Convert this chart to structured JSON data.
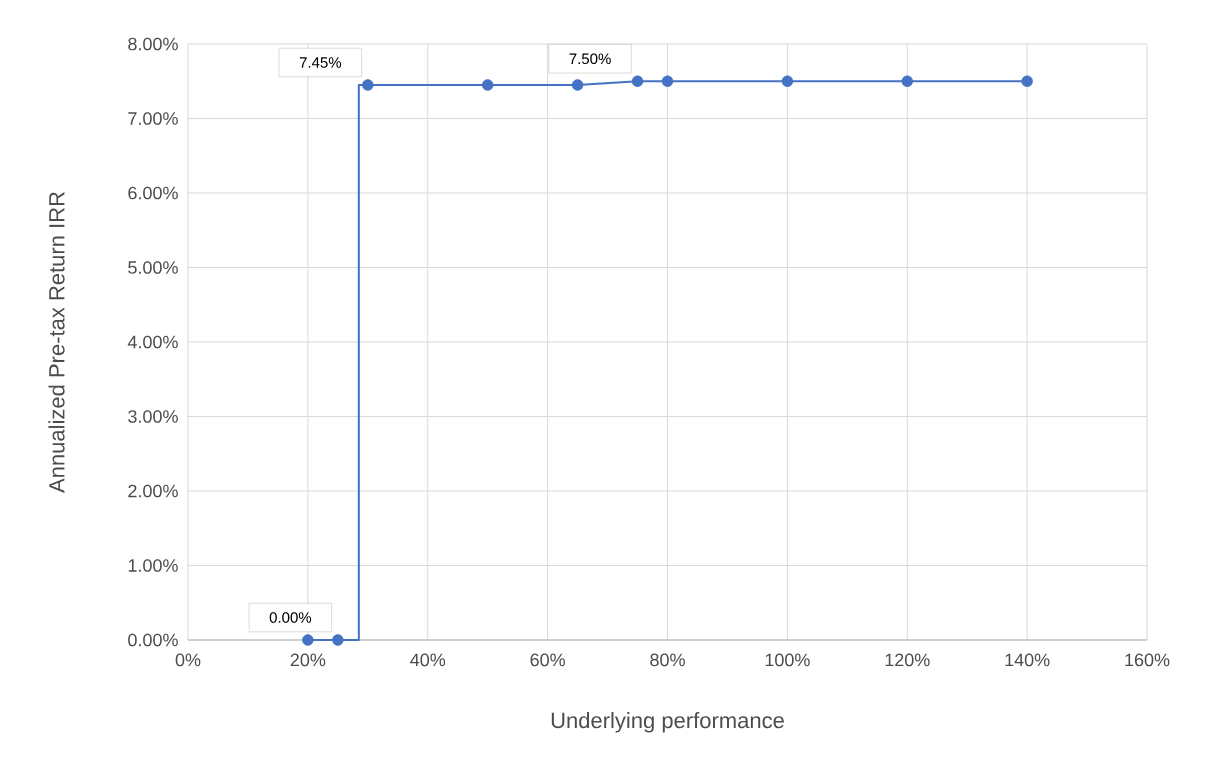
{
  "chart_data": {
    "type": "line",
    "xlabel": "Underlying performance",
    "ylabel": "Annualized Pre-tax Return IRR",
    "series": [
      {
        "color": "#4472c4",
        "marker": "none",
        "x": [
          20,
          25,
          28.5,
          28.5,
          30,
          50,
          65,
          75,
          80,
          100,
          120,
          140
        ],
        "values": [
          0,
          0,
          0,
          7.45,
          7.45,
          7.45,
          7.45,
          7.5,
          7.5,
          7.5,
          7.5,
          7.5
        ]
      },
      {
        "type": "scatter",
        "color": "#4472c4",
        "marker": "circle",
        "x": [
          20,
          25,
          30,
          50,
          65,
          75,
          80,
          100,
          120,
          140
        ],
        "values": [
          0,
          0,
          7.45,
          7.45,
          7.45,
          7.5,
          7.5,
          7.5,
          7.5,
          7.5
        ]
      }
    ],
    "xlim": [
      0,
      160
    ],
    "ylim": [
      0,
      8
    ],
    "xticks": [
      {
        "value": 0,
        "label": "0%"
      },
      {
        "value": 20,
        "label": "20%"
      },
      {
        "value": 40,
        "label": "40%"
      },
      {
        "value": 60,
        "label": "60%"
      },
      {
        "value": 80,
        "label": "80%"
      },
      {
        "value": 100,
        "label": "100%"
      },
      {
        "value": 120,
        "label": "120%"
      },
      {
        "value": 140,
        "label": "140%"
      },
      {
        "value": 160,
        "label": "160%"
      }
    ],
    "yticks": [
      {
        "value": 0,
        "label": "0.00%"
      },
      {
        "value": 1,
        "label": "1.00%"
      },
      {
        "value": 2,
        "label": "2.00%"
      },
      {
        "value": 3,
        "label": "3.00%"
      },
      {
        "value": 4,
        "label": "4.00%"
      },
      {
        "value": 5,
        "label": "5.00%"
      },
      {
        "value": 6,
        "label": "6.00%"
      },
      {
        "value": 7,
        "label": "7.00%"
      },
      {
        "value": 8,
        "label": "8.00%"
      }
    ],
    "grid": true,
    "annotations": [
      {
        "text": "0.00%",
        "x": 25,
        "y": 0
      },
      {
        "text": "7.45%",
        "x": 30,
        "y": 7.45
      },
      {
        "text": "7.50%",
        "x": 75,
        "y": 7.5
      }
    ]
  }
}
